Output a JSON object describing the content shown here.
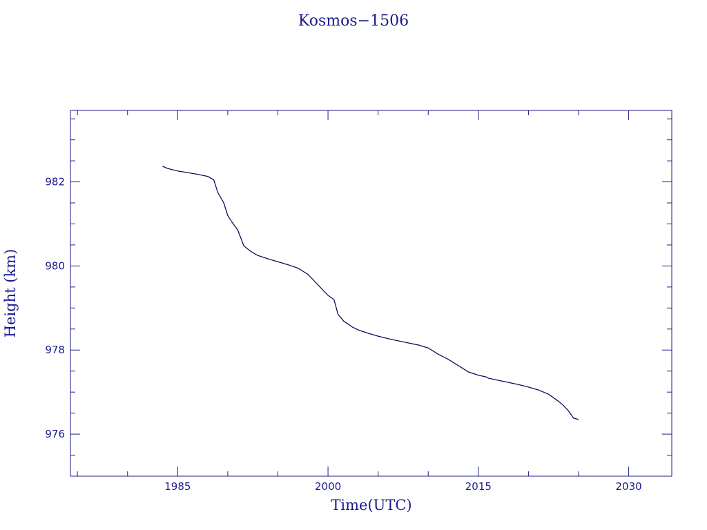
{
  "chart_data": {
    "type": "line",
    "title": "Kosmos−1506",
    "xlabel": "Time(UTC)",
    "ylabel": "Height (km)",
    "xlim": [
      1974.3,
      2034.3
    ],
    "ylim": [
      975.0,
      983.7
    ],
    "x_ticks": [
      1985,
      2000,
      2015,
      2030
    ],
    "x_minor_step": 5,
    "y_ticks": [
      976,
      978,
      980,
      982
    ],
    "y_minor_step": 0.5,
    "grid": false,
    "legend": "none",
    "colors": {
      "axes": "#1a1a8c",
      "line": "#0d0d5e"
    },
    "series": [
      {
        "x": [
          1983.5,
          1984.0,
          1985.0,
          1986.0,
          1987.0,
          1988.0,
          1988.6,
          1989.0,
          1989.6,
          1990.0,
          1990.4,
          1991.0,
          1991.6,
          1992.0,
          1992.4,
          1993.0,
          1994.0,
          1995.0,
          1996.0,
          1997.0,
          1998.0,
          1999.0,
          2000.0,
          2000.6,
          2001.0,
          2001.6,
          2002.0,
          2002.4,
          2003.0,
          2004.0,
          2005.0,
          2006.0,
          2007.0,
          2008.0,
          2009.0,
          2010.0,
          2011.0,
          2012.0,
          2013.0,
          2014.0,
          2015.0,
          2015.8,
          2016.0,
          2017.0,
          2018.0,
          2019.0,
          2020.0,
          2021.0,
          2022.0,
          2023.0,
          2023.5,
          2024.0,
          2024.5,
          2025.0
        ],
        "y": [
          982.37,
          982.32,
          982.26,
          982.22,
          982.18,
          982.13,
          982.05,
          981.75,
          981.5,
          981.2,
          981.05,
          980.85,
          980.48,
          980.4,
          980.33,
          980.25,
          980.17,
          980.1,
          980.03,
          979.95,
          979.8,
          979.55,
          979.3,
          979.2,
          978.85,
          978.68,
          978.62,
          978.55,
          978.48,
          978.4,
          978.33,
          978.27,
          978.22,
          978.17,
          978.12,
          978.05,
          977.9,
          977.78,
          977.63,
          977.48,
          977.4,
          977.36,
          977.33,
          977.28,
          977.23,
          977.18,
          977.12,
          977.05,
          976.95,
          976.78,
          976.68,
          976.55,
          976.38,
          976.35
        ]
      }
    ]
  }
}
